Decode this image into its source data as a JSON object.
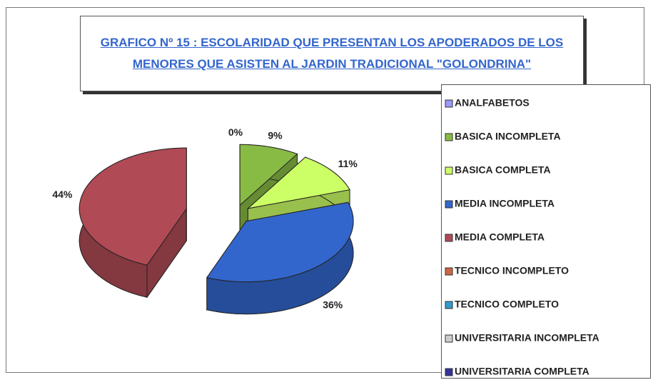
{
  "chart_data": {
    "type": "pie3d",
    "title": "GRAFICO Nº 15 : ESCOLARIDAD QUE PRESENTAN LOS APODERADOS DE LOS MENORES QUE ASISTEN AL JARDIN TRADICIONAL \"GOLONDRINA\"",
    "categories": [
      "ANALFABETOS",
      "BASICA INCOMPLETA",
      "BASICA COMPLETA",
      "MEDIA INCOMPLETA",
      "MEDIA COMPLETA",
      "TECNICO INCOMPLETO",
      "TECNICO COMPLETO",
      "UNIVERSITARIA INCOMPLETA",
      "UNIVERSITARIA COMPLETA"
    ],
    "values": [
      0,
      9,
      11,
      36,
      44,
      0,
      0,
      0,
      0
    ],
    "value_labels": [
      "0%",
      "9%",
      "11%",
      "36%",
      "44%",
      null,
      null,
      null,
      null
    ],
    "colors": [
      "#9999ff",
      "#88bb44",
      "#ccff66",
      "#3366cc",
      "#b04a55",
      "#cc6644",
      "#3399cc",
      "#cccccc",
      "#333399"
    ],
    "legend": "right"
  }
}
